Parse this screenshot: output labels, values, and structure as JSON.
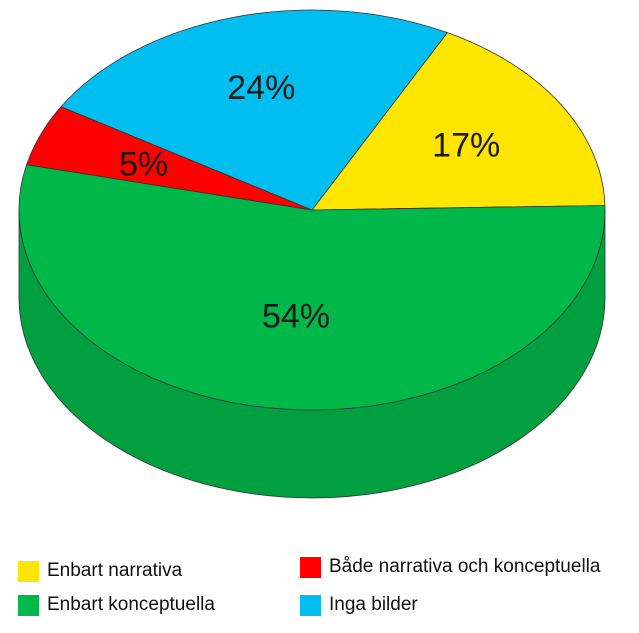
{
  "chart_data": {
    "type": "pie",
    "title": "",
    "style": "3d",
    "slices": [
      {
        "name": "Enbart narrativa",
        "value": 17,
        "label": "17%",
        "color": "#ffe600",
        "side_color": "#d9c600"
      },
      {
        "name": "Enbart konceptuella",
        "value": 54,
        "label": "54%",
        "color": "#00b84a",
        "side_color": "#00a040"
      },
      {
        "name": "Både narrativa och konceptuella",
        "value": 5,
        "label": "5%",
        "color": "#ff0000",
        "side_color": "#d40000"
      },
      {
        "name": "Inga bilder",
        "value": 24,
        "label": "24%",
        "color": "#00bff0",
        "side_color": "#00a0cc"
      }
    ],
    "legend_placement": "bottom"
  }
}
